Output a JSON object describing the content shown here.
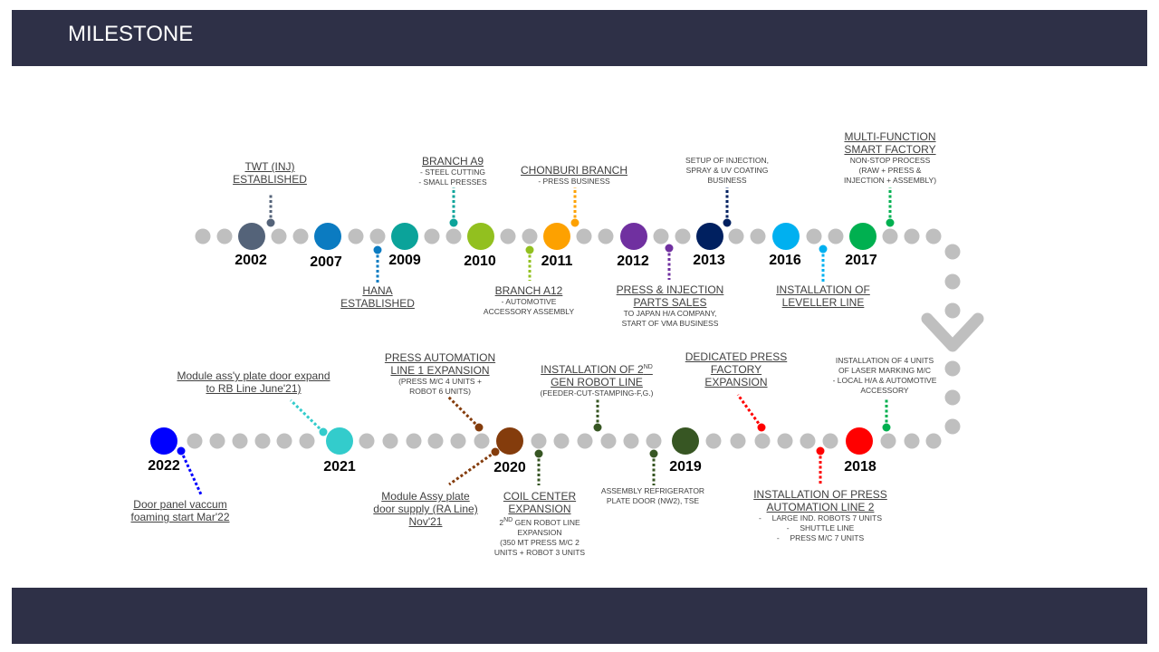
{
  "header": {
    "title": "MILESTONE"
  },
  "colors": {
    "track": "#bfbfbf",
    "text": "#404040",
    "bar": "#2e3047"
  },
  "years": [
    {
      "label": "2002",
      "color": "#546379"
    },
    {
      "label": "2007",
      "color": "#0b7bc1"
    },
    {
      "label": "2009",
      "color": "#0ba39a"
    },
    {
      "label": "2010",
      "color": "#92c01f"
    },
    {
      "label": "2011",
      "color": "#fda100"
    },
    {
      "label": "2012",
      "color": "#7030a0"
    },
    {
      "label": "2013",
      "color": "#002060"
    },
    {
      "label": "2016",
      "color": "#00b0f0"
    },
    {
      "label": "2017",
      "color": "#00b050"
    },
    {
      "label": "2022",
      "color": "#0000ff"
    },
    {
      "label": "2021",
      "color": "#33cccc"
    },
    {
      "label": "2020",
      "color": "#843c0c"
    },
    {
      "label": "2019",
      "color": "#375623"
    },
    {
      "label": "2018",
      "color": "#ff0000"
    }
  ],
  "events": {
    "twt": {
      "title": [
        "TWT (INJ)",
        "ESTABLISHED"
      ]
    },
    "hana": {
      "title": [
        "HANA",
        "ESTABLISHED"
      ]
    },
    "a9": {
      "title": [
        "BRANCH A9"
      ],
      "details": [
        "- STEEL CUTTING",
        "- SMALL PRESSES"
      ]
    },
    "a12": {
      "title": [
        "BRANCH A12"
      ],
      "details": [
        "- AUTOMOTIVE",
        "ACCESSORY ASSEMBLY"
      ]
    },
    "chonburi": {
      "title": [
        "CHONBURI BRANCH"
      ],
      "details": [
        "- PRESS BUSINESS"
      ]
    },
    "press_injection": {
      "title": [
        "PRESS & INJECTION",
        "PARTS SALES"
      ],
      "details": [
        "TO JAPAN H/A COMPANY,",
        "START OF VMA BUSINESS"
      ]
    },
    "setup_injection": {
      "details": [
        "SETUP OF INJECTION,",
        "SPRAY & UV COATING",
        "BUSINESS"
      ]
    },
    "leveller": {
      "title": [
        "INSTALLATION  OF",
        "LEVELLER LINE"
      ]
    },
    "multi": {
      "title": [
        "MULTI-FUNCTION",
        "SMART  FACTORY"
      ],
      "details": [
        "NON-STOP PROCESS",
        "(RAW + PRESS &",
        "INJECTION + ASSEMBLY)"
      ]
    },
    "module_expand": {
      "title": [
        "Module ass'y plate door expand",
        "to RB Line  June'21)"
      ]
    },
    "press_auto1": {
      "title": [
        "PRESS AUTOMATION",
        "LINE 1 EXPANSION"
      ],
      "details": [
        "(PRESS M/C 4 UNITS +",
        "ROBOT 6 UNITS)"
      ]
    },
    "gen2": {
      "title": [
        "INSTALLATION  OF 2",
        "GEN ROBOT LINE"
      ],
      "sup": "ND",
      "details": [
        "(FEEDER-CUT-STAMPING-F,G.)"
      ]
    },
    "dedicated": {
      "title": [
        "DEDICATED PRESS",
        "FACTORY",
        "EXPANSION"
      ]
    },
    "laser": {
      "details": [
        "INSTALLATION OF 4 UNITS",
        "OF LASER MARKING M/C",
        "- LOCAL H/A & AUTOMOTIVE",
        "ACCESSORY"
      ]
    },
    "door_panel": {
      "title": [
        "Door panel vaccum",
        "foaming start Mar'22"
      ]
    },
    "module_assy": {
      "title": [
        "Module Assy plate",
        "door supply (RA Line)",
        "Nov'21"
      ]
    },
    "coil": {
      "title": [
        "COIL CENTER",
        "EXPANSION"
      ],
      "sup": "ND",
      "details": [
        "2",
        "GEN ROBOT LINE",
        "EXPANSION",
        "(350 MT  PRESS M/C 2",
        "UNITS + ROBOT 3 UNITS"
      ]
    },
    "assembly_ref": {
      "details": [
        "ASSEMBLY REFRIGERATOR",
        "PLATE DOOR (NW2), TSE"
      ]
    },
    "press_auto2": {
      "title": [
        "INSTALLATION  OF PRESS",
        "AUTOMATION  LINE 2"
      ],
      "details": [
        "-     LARGE IND. ROBOTS 7 UNITS",
        "-     SHUTTLE LINE",
        "-     PRESS M/C 7 UNITS"
      ]
    }
  }
}
